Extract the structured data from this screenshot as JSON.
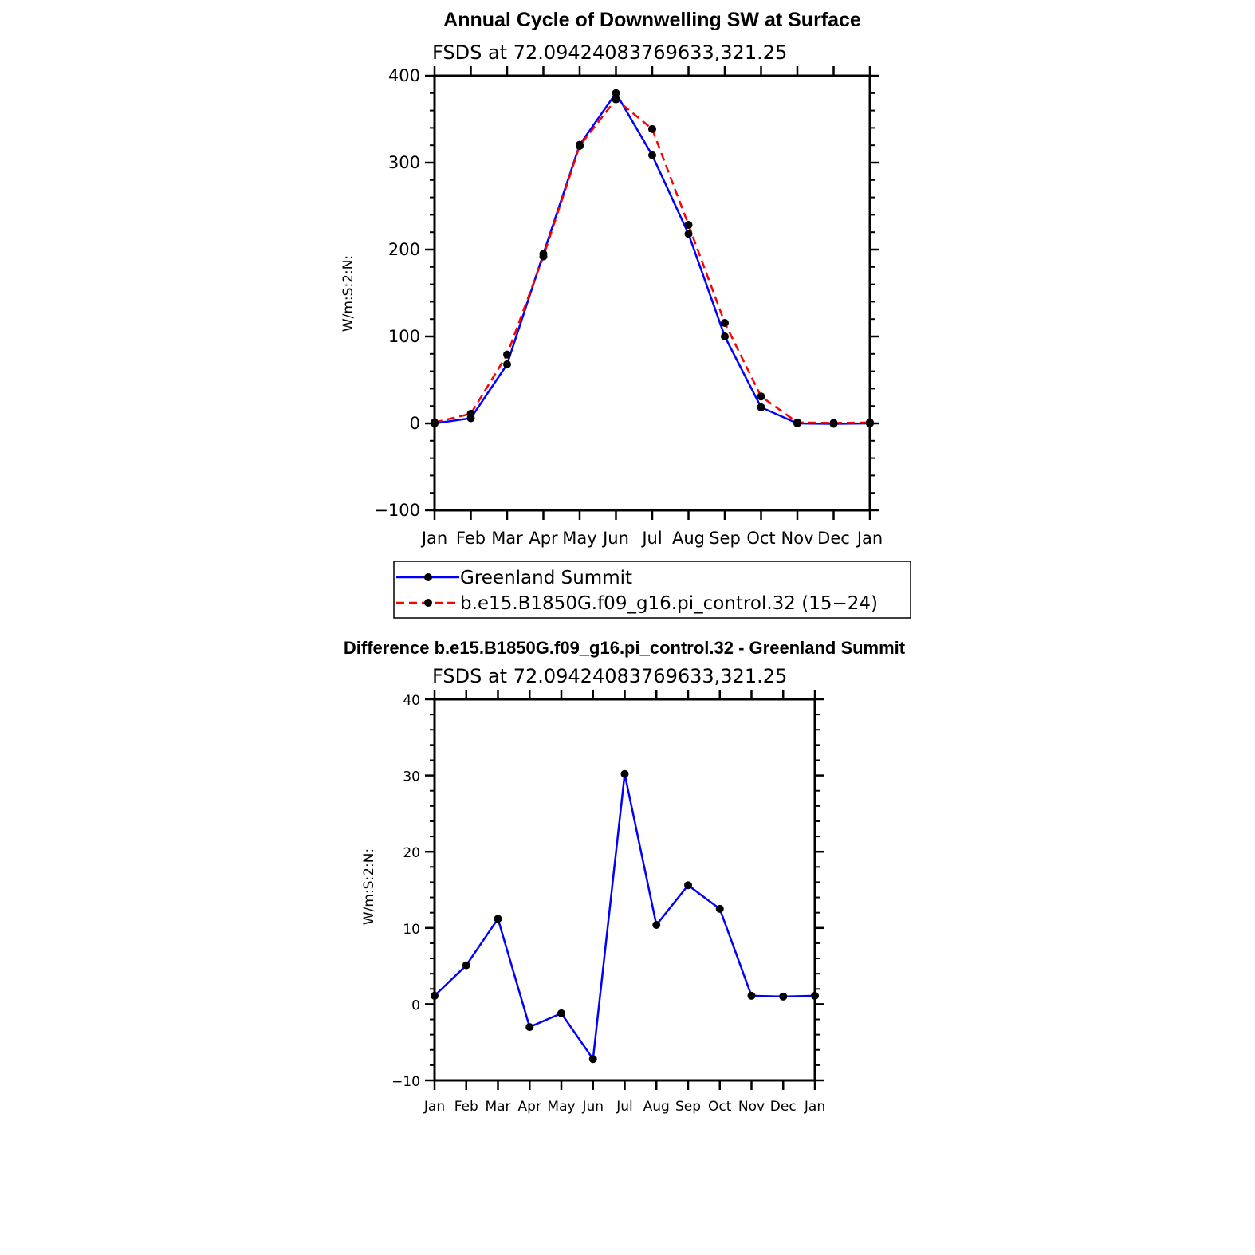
{
  "chart_data": [
    {
      "type": "line",
      "title": "Annual Cycle of Downwelling SW at Surface",
      "subtitle": "FSDS at 72.09424083769633,321.25",
      "xlabel": "",
      "ylabel": "W/m:S:2:N:",
      "categories": [
        "Jan",
        "Feb",
        "Mar",
        "Apr",
        "May",
        "Jun",
        "Jul",
        "Aug",
        "Sep",
        "Oct",
        "Nov",
        "Dec",
        "Jan"
      ],
      "ylim": [
        -100,
        400
      ],
      "yticks": [
        -100,
        0,
        100,
        200,
        300,
        400
      ],
      "ytick_labels": [
        "−100",
        "0",
        "100",
        "200",
        "300",
        "400"
      ],
      "grid": false,
      "legend": "bottom",
      "series": [
        {
          "name": "Greenland Summit",
          "color": "#0000ff",
          "dash": "solid",
          "values": [
            0,
            6,
            68,
            195,
            320.5,
            380,
            308.5,
            218,
            100,
            18.5,
            0,
            -0.5,
            0
          ]
        },
        {
          "name": "b.e15.B1850G.f09_g16.pi_control.32 (15−24)",
          "color": "#ff0000",
          "dash": "dashed",
          "values": [
            1.1,
            11.1,
            79.2,
            192.1,
            319.3,
            372.8,
            338.7,
            228.4,
            115.6,
            31,
            1.1,
            0.5,
            1.1
          ]
        }
      ]
    },
    {
      "type": "line",
      "title": "Difference b.e15.B1850G.f09_g16.pi_control.32 - Greenland Summit",
      "subtitle": "FSDS at 72.09424083769633,321.25",
      "xlabel": "",
      "ylabel": "W/m:S:2:N:",
      "categories": [
        "Jan",
        "Feb",
        "Mar",
        "Apr",
        "May",
        "Jun",
        "Jul",
        "Aug",
        "Sep",
        "Oct",
        "Nov",
        "Dec",
        "Jan"
      ],
      "ylim": [
        -10,
        40
      ],
      "yticks": [
        -10,
        0,
        10,
        20,
        30,
        40
      ],
      "ytick_labels": [
        "−10",
        "0",
        "10",
        "20",
        "30",
        "40"
      ],
      "grid": false,
      "series": [
        {
          "color": "#0000ff",
          "dash": "solid",
          "values": [
            1.1,
            5.1,
            11.2,
            -3.0,
            -1.2,
            -7.2,
            30.2,
            10.4,
            15.6,
            12.5,
            1.1,
            1.0,
            1.1
          ]
        }
      ]
    }
  ]
}
